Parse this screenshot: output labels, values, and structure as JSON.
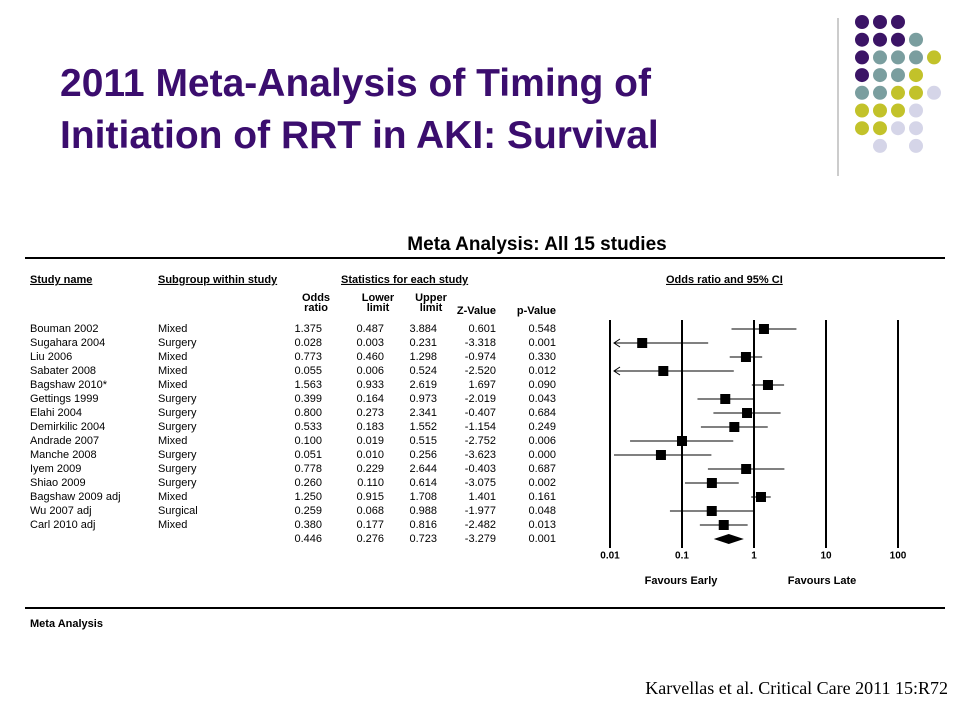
{
  "slide": {
    "title": [
      "2011 Meta-Analysis of Timing of",
      "Initiation of RRT in AKI: Survival"
    ],
    "citation": "Karvellas et al. Critical Care 2011 15:R72"
  },
  "chart_data": {
    "type": "forest",
    "title": "Meta Analysis: All 15   studies",
    "header": {
      "study": "Study name",
      "subgroup": "Subgroup within study",
      "stats": "Statistics for each study",
      "plot": "Odds ratio and 95% CI"
    },
    "studies": [
      "Bouman 2002",
      "Sugahara 2004",
      "Liu 2006",
      "Sabater 2008",
      "Bagshaw 2010*",
      "Gettings 1999",
      "Elahi 2004",
      "Demirkilic 2004",
      "Andrade 2007",
      "Manche 2008",
      "Iyem 2009",
      "Shiao 2009",
      "Bagshaw 2009 adj",
      "Wu 2007 adj",
      "Carl 2010 adj"
    ],
    "subgroups": [
      "Mixed",
      "Surgery",
      "Mixed",
      "Mixed",
      "Mixed",
      "Surgery",
      "Surgery",
      "Surgery",
      "Mixed",
      "Surgery",
      "Surgery",
      "Surgery",
      "Mixed",
      "Surgical",
      "Mixed"
    ],
    "columns": [
      {
        "name": [
          "Odds",
          "ratio"
        ],
        "values": [
          1.375,
          0.028,
          0.773,
          0.055,
          1.563,
          0.399,
          0.8,
          0.533,
          0.1,
          0.051,
          0.778,
          0.26,
          1.25,
          0.259,
          0.38
        ],
        "value_labels": [
          "1.375",
          "0.028",
          "0.773",
          "0.055",
          "1.563",
          "0.399",
          "0.800",
          "0.533",
          "0.100",
          "0.051",
          "0.778",
          "0.260",
          "1.250",
          "0.259",
          "0.380"
        ],
        "summary": 0.446,
        "summary_label": "0.446"
      },
      {
        "name": [
          "Lower",
          "limit"
        ],
        "values": [
          0.487,
          0.003,
          0.46,
          0.006,
          0.933,
          0.164,
          0.273,
          0.183,
          0.019,
          0.01,
          0.229,
          0.11,
          0.915,
          0.068,
          0.177
        ],
        "value_labels": [
          "0.487",
          "0.003",
          "0.460",
          "0.006",
          "0.933",
          "0.164",
          "0.273",
          "0.183",
          "0.019",
          "0.010",
          "0.229",
          "0.110",
          "0.915",
          "0.068",
          "0.177"
        ],
        "summary": 0.276,
        "summary_label": "0.276"
      },
      {
        "name": [
          "Upper",
          "limit"
        ],
        "values": [
          3.884,
          0.231,
          1.298,
          0.524,
          2.619,
          0.973,
          2.341,
          1.552,
          0.515,
          0.256,
          2.644,
          0.614,
          1.708,
          0.988,
          0.816
        ],
        "value_labels": [
          "3.884",
          "0.231",
          "1.298",
          "0.524",
          "2.619",
          "0.973",
          "2.341",
          "1.552",
          "0.515",
          "0.256",
          "2.644",
          "0.614",
          "1.708",
          "0.988",
          "0.816"
        ],
        "summary": 0.723,
        "summary_label": "0.723"
      },
      {
        "name": [
          "Z-Value"
        ],
        "values": [
          0.601,
          -3.318,
          -0.974,
          -2.52,
          1.697,
          -2.019,
          -0.407,
          -1.154,
          -2.752,
          -3.623,
          -0.403,
          -3.075,
          1.401,
          -1.977,
          -2.482
        ],
        "value_labels": [
          "0.601",
          "-3.318",
          "-0.974",
          "-2.520",
          "1.697",
          "-2.019",
          "-0.407",
          "-1.154",
          "-2.752",
          "-3.623",
          "-0.403",
          "-3.075",
          "1.401",
          "-1.977",
          "-2.482"
        ],
        "summary": -3.279,
        "summary_label": "-3.279"
      },
      {
        "name": [
          "p-Value"
        ],
        "values": [
          0.548,
          0.001,
          0.33,
          0.012,
          0.09,
          0.043,
          0.684,
          0.249,
          0.006,
          0.0,
          0.687,
          0.002,
          0.161,
          0.048,
          0.013
        ],
        "value_labels": [
          "0.548",
          "0.001",
          "0.330",
          "0.012",
          "0.090",
          "0.043",
          "0.684",
          "0.249",
          "0.006",
          "0.000",
          "0.687",
          "0.002",
          "0.161",
          "0.048",
          "0.013"
        ],
        "summary": 0.001,
        "summary_label": "0.001"
      }
    ],
    "xscale": "log",
    "xlim": [
      0.01,
      100
    ],
    "xticks": [
      0.01,
      0.1,
      1,
      10,
      100
    ],
    "xlabels": [
      "Favours Early",
      "Favours Late"
    ],
    "color": "#000000",
    "footer": "Meta Analysis"
  }
}
